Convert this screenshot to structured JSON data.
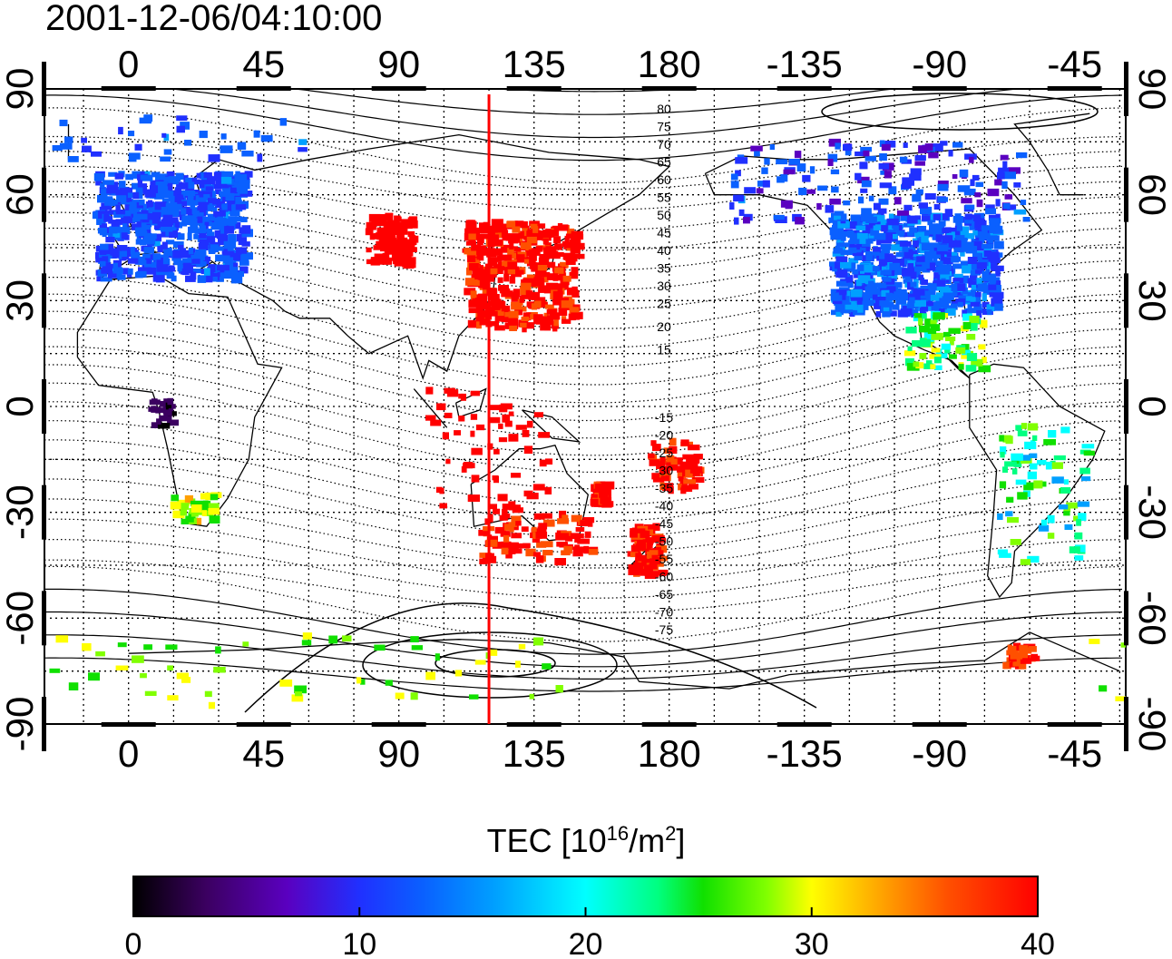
{
  "title": "2001-12-06/04:10:00",
  "map": {
    "lon_ticks": [
      "0",
      "45",
      "90",
      "135",
      "180",
      "-135",
      "-90",
      "-45"
    ],
    "lat_ticks": [
      "90",
      "60",
      "30",
      "0",
      "-30",
      "-60",
      "-90"
    ],
    "contour_labels_north": [
      "80",
      "75",
      "70",
      "65",
      "60",
      "55",
      "50",
      "45",
      "40",
      "35",
      "30",
      "25",
      "20",
      "15"
    ],
    "contour_labels_south": [
      "-15",
      "-20",
      "-25",
      "-30",
      "-35",
      "-40",
      "-45",
      "-50",
      "-55",
      "-60",
      "-65",
      "-70",
      "-75"
    ],
    "marker_longitude": 120,
    "marker_color": "#ff0000"
  },
  "colorbar": {
    "label_text": "TEC  [10",
    "label_sup1": "16",
    "label_mid": "/m",
    "label_sup2": "2",
    "label_end": "]",
    "ticks": [
      "0",
      "10",
      "20",
      "30",
      "40"
    ],
    "min": 0,
    "max": 40,
    "colors": [
      "#000000",
      "#3b0060",
      "#5a00c0",
      "#2030ff",
      "#0a60ff",
      "#00a0ff",
      "#00ffff",
      "#00ff80",
      "#10e000",
      "#80ff00",
      "#ffff00",
      "#ffa000",
      "#ff5000",
      "#ff0000"
    ]
  }
}
